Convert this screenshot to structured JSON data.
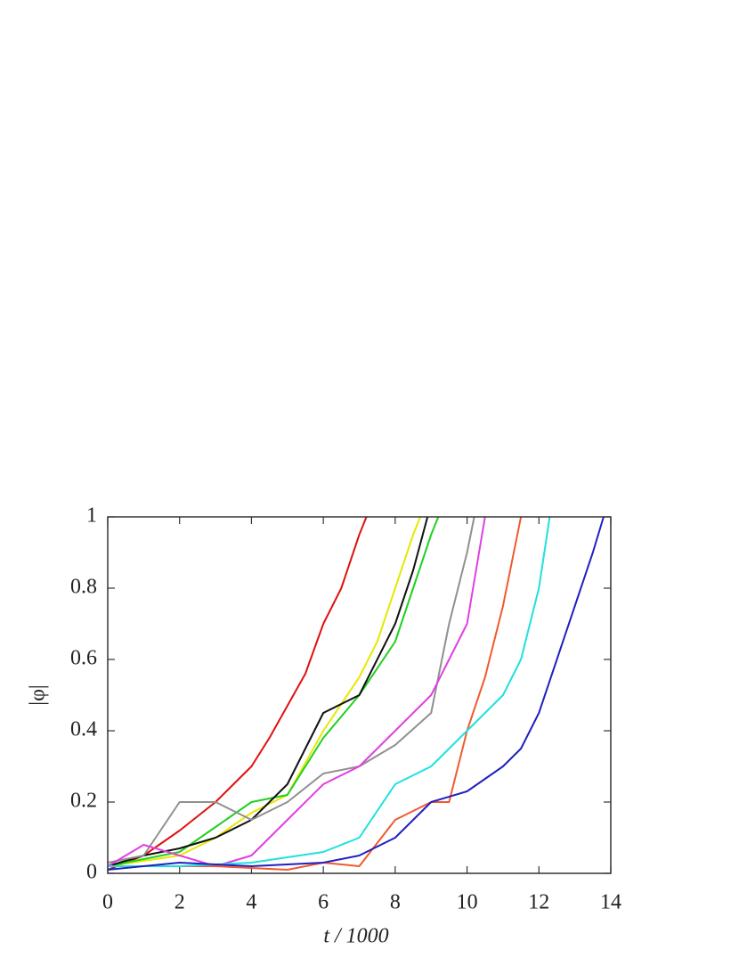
{
  "chart_data": {
    "type": "line",
    "x_label": "t / 1000",
    "y_label": "|φ|",
    "xlim": [
      0,
      14
    ],
    "xticks": [
      0,
      2,
      4,
      6,
      8,
      10,
      12,
      14
    ],
    "ylim": [
      0,
      1
    ],
    "yticks": [
      0,
      0.2,
      0.4,
      0.6,
      0.8,
      1
    ],
    "series": [
      {
        "color": "#e01010",
        "x": [
          0,
          1,
          2,
          3,
          4,
          4.5,
          5,
          5.5,
          6,
          6.5,
          7,
          7.2
        ],
        "values": [
          0.01,
          0.05,
          0.12,
          0.2,
          0.3,
          0.38,
          0.47,
          0.56,
          0.7,
          0.8,
          0.95,
          1
        ]
      },
      {
        "color": "#e8e800",
        "x": [
          0,
          2,
          3,
          4,
          5,
          6,
          7,
          7.5,
          8,
          8.5,
          8.7
        ],
        "values": [
          0.02,
          0.05,
          0.1,
          0.17,
          0.22,
          0.4,
          0.55,
          0.65,
          0.8,
          0.95,
          1
        ]
      },
      {
        "color": "#20d020",
        "x": [
          0,
          2,
          3,
          4,
          5,
          6,
          7,
          8,
          8.5,
          9,
          9.2
        ],
        "values": [
          0.02,
          0.06,
          0.13,
          0.2,
          0.22,
          0.38,
          0.5,
          0.65,
          0.8,
          0.95,
          1
        ]
      },
      {
        "color": "#111111",
        "x": [
          0,
          1,
          2,
          3,
          4,
          5,
          6,
          7,
          8,
          8.5,
          8.9
        ],
        "values": [
          0.02,
          0.05,
          0.07,
          0.1,
          0.15,
          0.25,
          0.45,
          0.5,
          0.7,
          0.85,
          1
        ]
      },
      {
        "color": "#909090",
        "x": [
          0,
          1,
          2,
          3,
          4,
          5,
          6,
          7,
          8,
          9,
          9.5,
          10,
          10.2
        ],
        "values": [
          0.03,
          0.05,
          0.2,
          0.2,
          0.15,
          0.2,
          0.28,
          0.3,
          0.36,
          0.45,
          0.7,
          0.9,
          1
        ]
      },
      {
        "color": "#e040e0",
        "x": [
          0,
          1,
          2,
          3,
          4,
          5,
          6,
          7,
          8,
          9,
          10,
          10.5
        ],
        "values": [
          0.02,
          0.08,
          0.05,
          0.02,
          0.05,
          0.15,
          0.25,
          0.3,
          0.4,
          0.5,
          0.7,
          1
        ]
      },
      {
        "color": "#f05a30",
        "x": [
          0,
          3,
          5,
          6,
          7,
          8,
          9,
          9.5,
          10,
          10.5,
          11,
          11.5
        ],
        "values": [
          0.02,
          0.02,
          0.01,
          0.03,
          0.02,
          0.15,
          0.2,
          0.2,
          0.4,
          0.55,
          0.75,
          1
        ]
      },
      {
        "color": "#20e0e0",
        "x": [
          0,
          2,
          4,
          6,
          7,
          8,
          9,
          10,
          11,
          11.5,
          12,
          12.3
        ],
        "values": [
          0.02,
          0.02,
          0.03,
          0.06,
          0.1,
          0.25,
          0.3,
          0.4,
          0.5,
          0.6,
          0.8,
          1
        ]
      },
      {
        "color": "#2020c0",
        "x": [
          0,
          2,
          4,
          6,
          7,
          8,
          9,
          10,
          11,
          11.5,
          12,
          12.5,
          13,
          13.5,
          13.8
        ],
        "values": [
          0.01,
          0.03,
          0.02,
          0.03,
          0.05,
          0.1,
          0.2,
          0.23,
          0.3,
          0.35,
          0.45,
          0.6,
          0.75,
          0.9,
          1
        ]
      }
    ]
  }
}
